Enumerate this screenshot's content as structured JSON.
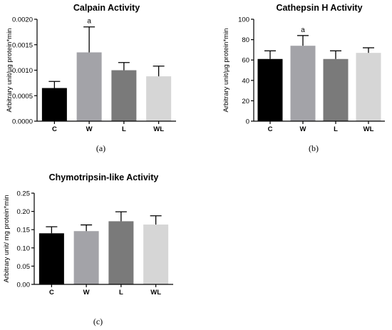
{
  "chart_data": [
    {
      "type": "bar",
      "title": "Calpain Activity",
      "ylabel": "Arbitrary unit/µg protein*min",
      "categories": [
        "C",
        "W",
        "L",
        "WL"
      ],
      "values": [
        0.00065,
        0.00135,
        0.001,
        0.00088
      ],
      "errors": [
        0.00013,
        0.0005,
        0.00015,
        0.0002
      ],
      "colors": [
        "#000000",
        "#a3a3a8",
        "#7a7a7a",
        "#d6d6d6"
      ],
      "ylim": [
        0,
        0.002
      ],
      "yticks": [
        0,
        0.0005,
        0.001,
        0.0015,
        0.002
      ],
      "ytick_labels": [
        "0.0000",
        "0.0005",
        "0.0010",
        "0.0015",
        "0.0020"
      ],
      "annotations": [
        {
          "category": "W",
          "text": "a"
        }
      ],
      "caption": "(a)"
    },
    {
      "type": "bar",
      "title": "Cathepsin H Activity",
      "ylabel": "Arbitrary unit/µg protein*min",
      "categories": [
        "C",
        "W",
        "L",
        "WL"
      ],
      "values": [
        61,
        74,
        61,
        67
      ],
      "errors": [
        8,
        10,
        8,
        5
      ],
      "colors": [
        "#000000",
        "#a3a3a8",
        "#7a7a7a",
        "#d6d6d6"
      ],
      "ylim": [
        0,
        100
      ],
      "yticks": [
        0,
        20,
        40,
        60,
        80,
        100
      ],
      "ytick_labels": [
        "0",
        "20",
        "40",
        "60",
        "80",
        "100"
      ],
      "annotations": [
        {
          "category": "W",
          "text": "a"
        }
      ],
      "caption": "(b)"
    },
    {
      "type": "bar",
      "title": "Chymotripsin-like Activity",
      "ylabel": "Arbitrary unit/ mg protein*min",
      "categories": [
        "C",
        "W",
        "L",
        "WL"
      ],
      "values": [
        0.14,
        0.146,
        0.173,
        0.164
      ],
      "errors": [
        0.018,
        0.017,
        0.026,
        0.024
      ],
      "colors": [
        "#000000",
        "#a3a3a8",
        "#7a7a7a",
        "#d6d6d6"
      ],
      "ylim": [
        0,
        0.25
      ],
      "yticks": [
        0,
        0.05,
        0.1,
        0.15,
        0.2,
        0.25
      ],
      "ytick_labels": [
        "0.00",
        "0.05",
        "0.10",
        "0.15",
        "0.20",
        "0.25"
      ],
      "annotations": [],
      "caption": "(c)"
    }
  ]
}
